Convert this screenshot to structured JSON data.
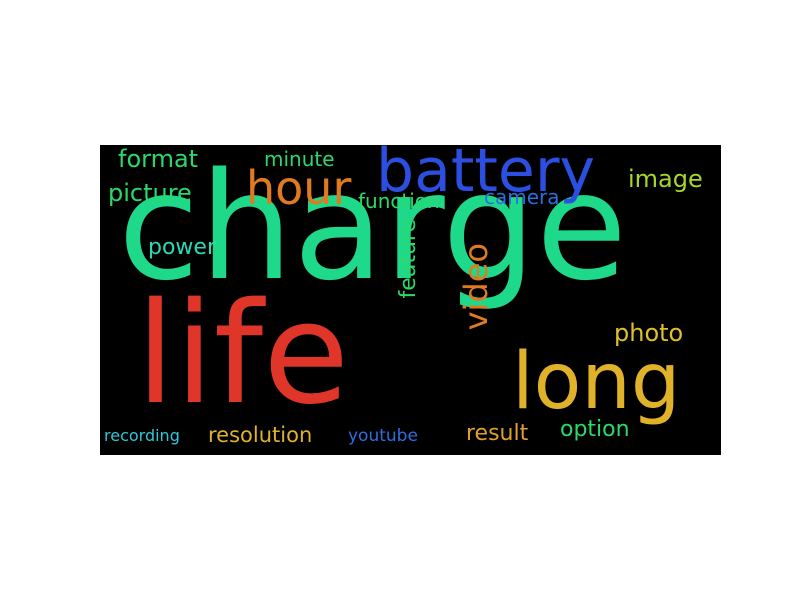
{
  "word_cloud": {
    "background_color": "#000000",
    "words": [
      {
        "text": "charge",
        "color": "#1fd98a"
      },
      {
        "text": "life",
        "color": "#e0362a"
      },
      {
        "text": "long",
        "color": "#e0b22a"
      },
      {
        "text": "battery",
        "color": "#2b4fe0"
      },
      {
        "text": "hour",
        "color": "#e07a20"
      },
      {
        "text": "video",
        "color": "#e07a20"
      },
      {
        "text": "format",
        "color": "#2bd96a"
      },
      {
        "text": "minute",
        "color": "#2bd96a"
      },
      {
        "text": "picture",
        "color": "#2bd96a"
      },
      {
        "text": "function",
        "color": "#2bd96a"
      },
      {
        "text": "camera",
        "color": "#2b6fe0"
      },
      {
        "text": "image",
        "color": "#a8d62a"
      },
      {
        "text": "power",
        "color": "#2bd9b8"
      },
      {
        "text": "feature",
        "color": "#2bd96a"
      },
      {
        "text": "photo",
        "color": "#e0c02a"
      },
      {
        "text": "recording",
        "color": "#2bc8d9"
      },
      {
        "text": "resolution",
        "color": "#e0b22a"
      },
      {
        "text": "youtube",
        "color": "#2b6fe0"
      },
      {
        "text": "result",
        "color": "#e0a02a"
      },
      {
        "text": "option",
        "color": "#2bd96a"
      }
    ]
  }
}
